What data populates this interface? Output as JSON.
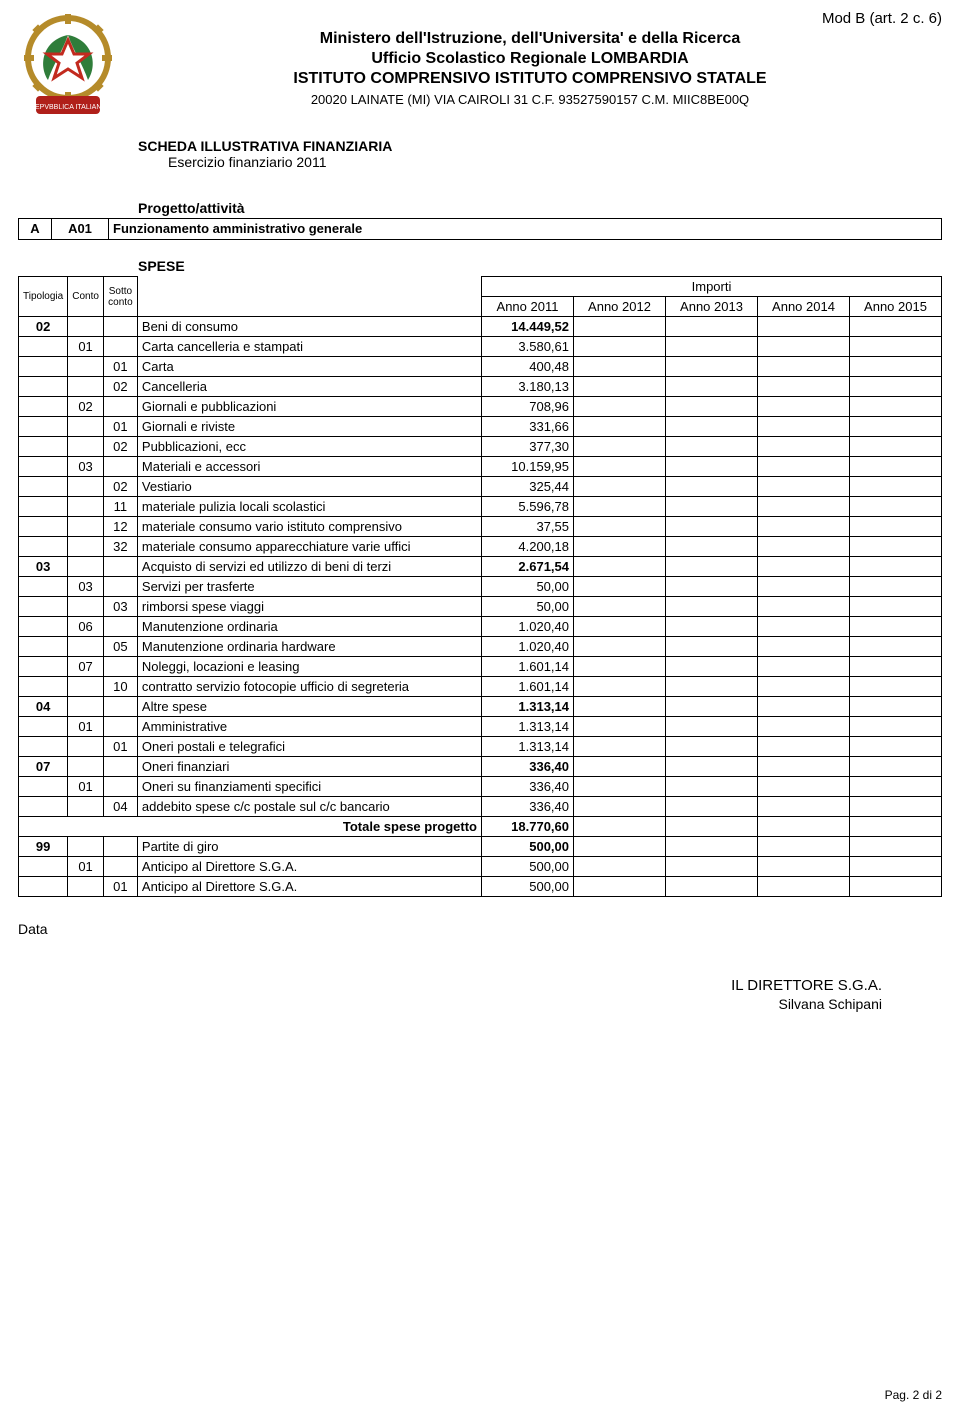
{
  "mod_label": "Mod B (art. 2 c. 6)",
  "header": {
    "line1": "Ministero dell'Istruzione, dell'Universita' e della Ricerca",
    "line2": "Ufficio Scolastico Regionale LOMBARDIA",
    "line3": "ISTITUTO COMPRENSIVO ISTITUTO COMPRENSIVO STATALE",
    "line4": "20020 LAINATE (MI) VIA CAIROLI 31 C.F. 93527590157 C.M. MIIC8BE00Q"
  },
  "scheda": {
    "title": "SCHEDA ILLUSTRATIVA FINANZIARIA",
    "sub": "Esercizio finanziario 2011"
  },
  "progetto": {
    "label": "Progetto/attività",
    "a": "A",
    "code": "A01",
    "desc": "Funzionamento amministrativo generale"
  },
  "spese_label": "SPESE",
  "columns": {
    "tipologia": "Tipologia",
    "conto": "Conto",
    "sotto": "Sotto conto",
    "importi": "Importi",
    "anno2011": "Anno 2011",
    "anno2012": "Anno 2012",
    "anno2013": "Anno 2013",
    "anno2014": "Anno 2014",
    "anno2015": "Anno 2015"
  },
  "rows": [
    {
      "t": "02",
      "c": "",
      "s": "",
      "desc": "Beni di consumo",
      "v": "14.449,52",
      "bold": true
    },
    {
      "t": "",
      "c": "01",
      "s": "",
      "desc": "Carta cancelleria e stampati",
      "v": "3.580,61"
    },
    {
      "t": "",
      "c": "",
      "s": "01",
      "desc": "Carta",
      "v": "400,48"
    },
    {
      "t": "",
      "c": "",
      "s": "02",
      "desc": "Cancelleria",
      "v": "3.180,13"
    },
    {
      "t": "",
      "c": "02",
      "s": "",
      "desc": "Giornali e pubblicazioni",
      "v": "708,96"
    },
    {
      "t": "",
      "c": "",
      "s": "01",
      "desc": "Giornali e riviste",
      "v": "331,66"
    },
    {
      "t": "",
      "c": "",
      "s": "02",
      "desc": "Pubblicazioni, ecc",
      "v": "377,30"
    },
    {
      "t": "",
      "c": "03",
      "s": "",
      "desc": "Materiali e accessori",
      "v": "10.159,95"
    },
    {
      "t": "",
      "c": "",
      "s": "02",
      "desc": "Vestiario",
      "v": "325,44"
    },
    {
      "t": "",
      "c": "",
      "s": "11",
      "desc": "materiale pulizia locali scolastici",
      "v": "5.596,78"
    },
    {
      "t": "",
      "c": "",
      "s": "12",
      "desc": "materiale consumo vario istituto comprensivo",
      "v": "37,55"
    },
    {
      "t": "",
      "c": "",
      "s": "32",
      "desc": "materiale consumo apparecchiature varie uffici",
      "v": "4.200,18"
    },
    {
      "t": "03",
      "c": "",
      "s": "",
      "desc": "Acquisto di servizi ed utilizzo di beni di terzi",
      "v": "2.671,54",
      "bold": true
    },
    {
      "t": "",
      "c": "03",
      "s": "",
      "desc": "Servizi per trasferte",
      "v": "50,00"
    },
    {
      "t": "",
      "c": "",
      "s": "03",
      "desc": "rimborsi spese viaggi",
      "v": "50,00"
    },
    {
      "t": "",
      "c": "06",
      "s": "",
      "desc": "Manutenzione ordinaria",
      "v": "1.020,40"
    },
    {
      "t": "",
      "c": "",
      "s": "05",
      "desc": "Manutenzione ordinaria hardware",
      "v": "1.020,40"
    },
    {
      "t": "",
      "c": "07",
      "s": "",
      "desc": "Noleggi, locazioni e leasing",
      "v": "1.601,14"
    },
    {
      "t": "",
      "c": "",
      "s": "10",
      "desc": "contratto servizio fotocopie ufficio di segreteria",
      "v": "1.601,14"
    },
    {
      "t": "04",
      "c": "",
      "s": "",
      "desc": "Altre spese",
      "v": "1.313,14",
      "bold": true
    },
    {
      "t": "",
      "c": "01",
      "s": "",
      "desc": "Amministrative",
      "v": "1.313,14"
    },
    {
      "t": "",
      "c": "",
      "s": "01",
      "desc": "Oneri postali e telegrafici",
      "v": "1.313,14"
    },
    {
      "t": "07",
      "c": "",
      "s": "",
      "desc": "Oneri finanziari",
      "v": "336,40",
      "bold": true
    },
    {
      "t": "",
      "c": "01",
      "s": "",
      "desc": "Oneri su finanziamenti specifici",
      "v": "336,40"
    },
    {
      "t": "",
      "c": "",
      "s": "04",
      "desc": "addebito spese c/c postale sul c/c bancario",
      "v": "336,40"
    }
  ],
  "total": {
    "label": "Totale spese progetto",
    "v": "18.770,60"
  },
  "rows2": [
    {
      "t": "99",
      "c": "",
      "s": "",
      "desc": "Partite di giro",
      "v": "500,00",
      "bold": true
    },
    {
      "t": "",
      "c": "01",
      "s": "",
      "desc": "Anticipo al Direttore S.G.A.",
      "v": "500,00"
    },
    {
      "t": "",
      "c": "",
      "s": "01",
      "desc": "Anticipo al Direttore S.G.A.",
      "v": "500,00"
    }
  ],
  "data_label": "Data",
  "signature": {
    "role": "IL DIRETTORE S.G.A.",
    "name": "Silvana Schipani"
  },
  "page_num": "Pag. 2 di 2",
  "emblem_colors": {
    "gear": "#b58b2a",
    "red": "#c22a1e",
    "green": "#2f7d3a",
    "white": "#ffffff",
    "gold": "#d4a83e",
    "ribbon": "#b0201a"
  }
}
